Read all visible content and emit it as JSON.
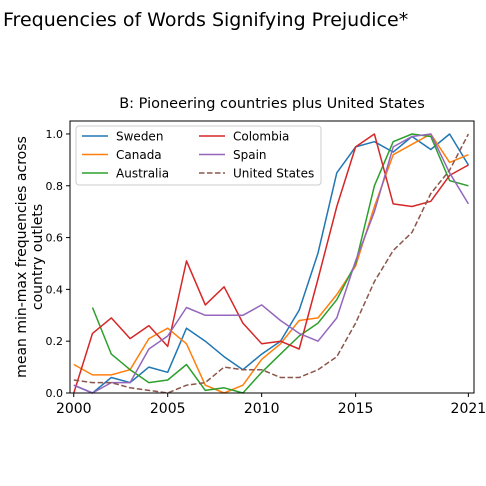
{
  "page_title": "Frequencies of Words Signifying Prejudice*",
  "chart_data": {
    "type": "line",
    "title": "B: Pioneering countries plus United States",
    "xlabel": "",
    "ylabel": "mean min-max frequencies across\ncountry outlets",
    "xlim": [
      1999.8,
      2021.3
    ],
    "ylim": [
      0,
      1.05
    ],
    "x_ticks": [
      2000,
      2005,
      2010,
      2015,
      2021
    ],
    "y_ticks": [
      0.0,
      0.2,
      0.4,
      0.6,
      0.8,
      1.0
    ],
    "grid": false,
    "legend_position": "top-left",
    "series": [
      {
        "name": "Sweden",
        "color": "#1f77b4",
        "dash": "solid",
        "x": [
          2000,
          2001,
          2002,
          2003,
          2004,
          2005,
          2006,
          2007,
          2008,
          2009,
          2010,
          2011,
          2012,
          2013,
          2014,
          2015,
          2016,
          2017,
          2018,
          2019,
          2020,
          2021
        ],
        "y": [
          0.03,
          0.0,
          0.06,
          0.04,
          0.1,
          0.08,
          0.25,
          0.2,
          0.14,
          0.09,
          0.15,
          0.2,
          0.32,
          0.54,
          0.85,
          0.95,
          0.97,
          0.93,
          0.99,
          0.94,
          1.0,
          0.88
        ]
      },
      {
        "name": "Canada",
        "color": "#ff7f0e",
        "dash": "solid",
        "x": [
          2000,
          2001,
          2002,
          2003,
          2004,
          2005,
          2006,
          2007,
          2008,
          2009,
          2010,
          2011,
          2012,
          2013,
          2014,
          2015,
          2016,
          2017,
          2018,
          2019,
          2020,
          2021
        ],
        "y": [
          0.11,
          0.07,
          0.07,
          0.09,
          0.21,
          0.25,
          0.19,
          0.03,
          0.0,
          0.03,
          0.13,
          0.19,
          0.28,
          0.29,
          0.38,
          0.49,
          0.72,
          0.92,
          0.96,
          1.0,
          0.89,
          0.92
        ]
      },
      {
        "name": "Australia",
        "color": "#2ca02c",
        "dash": "solid",
        "x": [
          2001,
          2002,
          2003,
          2004,
          2005,
          2006,
          2007,
          2008,
          2009,
          2010,
          2011,
          2012,
          2013,
          2014,
          2015,
          2016,
          2017,
          2018,
          2019,
          2020,
          2021
        ],
        "y": [
          0.33,
          0.15,
          0.09,
          0.04,
          0.05,
          0.11,
          0.01,
          0.02,
          0.0,
          0.08,
          0.15,
          0.22,
          0.27,
          0.36,
          0.5,
          0.8,
          0.97,
          1.0,
          0.99,
          0.82,
          0.8
        ]
      },
      {
        "name": "Colombia",
        "color": "#d62728",
        "dash": "solid",
        "x": [
          2000,
          2001,
          2002,
          2003,
          2004,
          2005,
          2006,
          2007,
          2008,
          2009,
          2010,
          2011,
          2012,
          2013,
          2014,
          2015,
          2016,
          2017,
          2018,
          2019,
          2020,
          2021
        ],
        "y": [
          0.0,
          0.23,
          0.29,
          0.21,
          0.26,
          0.18,
          0.51,
          0.34,
          0.41,
          0.27,
          0.19,
          0.2,
          0.17,
          0.44,
          0.72,
          0.95,
          1.0,
          0.73,
          0.72,
          0.74,
          0.84,
          0.88
        ]
      },
      {
        "name": "Spain",
        "color": "#9467bd",
        "dash": "solid",
        "x": [
          2000,
          2001,
          2002,
          2003,
          2004,
          2005,
          2006,
          2007,
          2008,
          2009,
          2010,
          2011,
          2012,
          2013,
          2014,
          2015,
          2016,
          2017,
          2018,
          2019,
          2020,
          2021
        ],
        "y": [
          0.03,
          0.0,
          0.04,
          0.04,
          0.17,
          0.22,
          0.33,
          0.3,
          0.3,
          0.3,
          0.34,
          0.28,
          0.23,
          0.2,
          0.29,
          0.51,
          0.7,
          0.95,
          0.99,
          1.0,
          0.85,
          0.73
        ]
      },
      {
        "name": "United States",
        "color": "#8c564b",
        "dash": "dashed",
        "x": [
          2000,
          2001,
          2002,
          2003,
          2004,
          2005,
          2006,
          2007,
          2008,
          2009,
          2010,
          2011,
          2012,
          2013,
          2014,
          2015,
          2016,
          2017,
          2018,
          2019,
          2020,
          2021
        ],
        "y": [
          0.05,
          0.04,
          0.04,
          0.02,
          0.01,
          0.0,
          0.03,
          0.04,
          0.1,
          0.09,
          0.09,
          0.06,
          0.06,
          0.09,
          0.14,
          0.27,
          0.43,
          0.55,
          0.62,
          0.77,
          0.86,
          1.0
        ]
      }
    ]
  }
}
